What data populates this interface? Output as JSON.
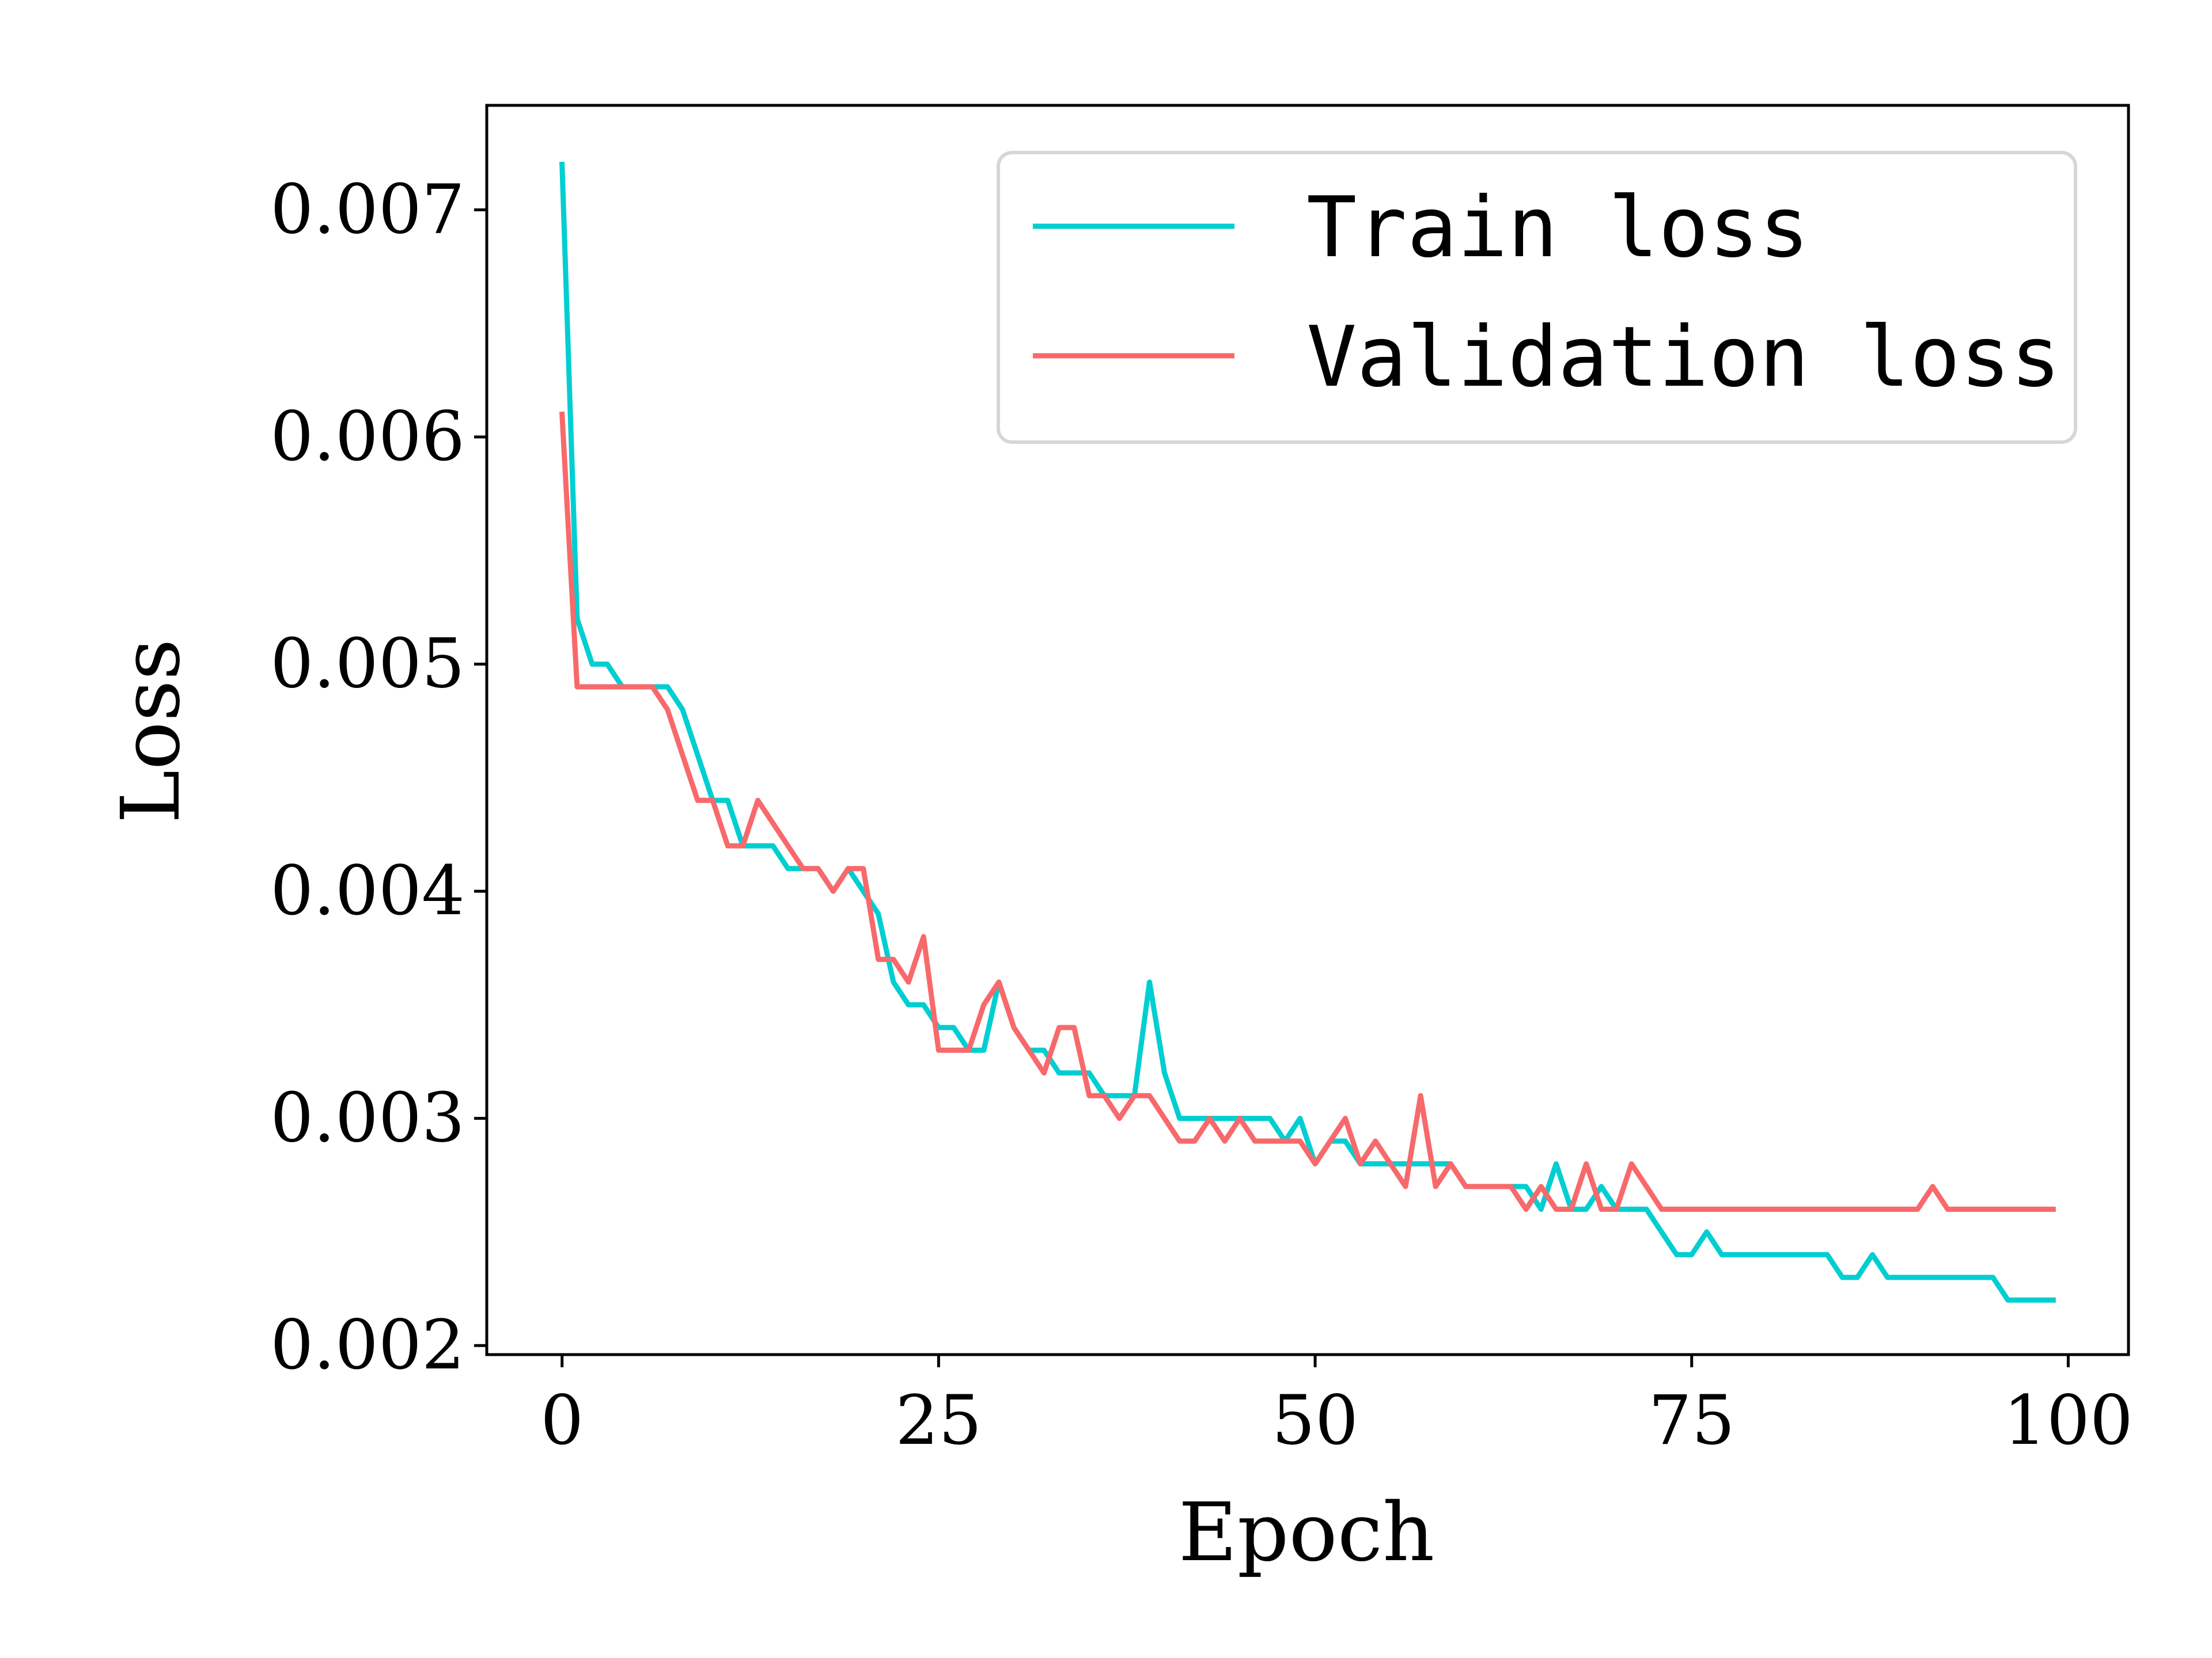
{
  "chart_data": {
    "type": "line",
    "xlabel": "Epoch",
    "ylabel": "Loss",
    "xlim": [
      -5,
      104
    ],
    "ylim": [
      0.00196,
      0.00746
    ],
    "xticks": [
      0,
      25,
      50,
      75,
      100
    ],
    "xtick_labels": [
      "0",
      "25",
      "50",
      "75",
      "100"
    ],
    "yticks": [
      0.002,
      0.003,
      0.004,
      0.005,
      0.006,
      0.007
    ],
    "ytick_labels": [
      "0.002",
      "0.003",
      "0.004",
      "0.005",
      "0.006",
      "0.007"
    ],
    "grid": false,
    "legend_position": "top-right",
    "series": [
      {
        "name": "Train loss",
        "color": "#00CED1",
        "x": [
          0,
          1,
          2,
          3,
          4,
          5,
          6,
          7,
          8,
          9,
          10,
          11,
          12,
          13,
          14,
          15,
          16,
          17,
          18,
          19,
          20,
          21,
          22,
          23,
          24,
          25,
          26,
          27,
          28,
          29,
          30,
          31,
          32,
          33,
          34,
          35,
          36,
          37,
          38,
          39,
          40,
          41,
          42,
          43,
          44,
          45,
          46,
          47,
          48,
          49,
          50,
          51,
          52,
          53,
          54,
          55,
          56,
          57,
          58,
          59,
          60,
          61,
          62,
          63,
          64,
          65,
          66,
          67,
          68,
          69,
          70,
          71,
          72,
          73,
          74,
          75,
          76,
          77,
          78,
          79,
          80,
          81,
          82,
          83,
          84,
          85,
          86,
          87,
          88,
          89,
          90,
          91,
          92,
          93,
          94,
          95,
          96,
          97,
          98,
          99
        ],
        "values": [
          0.0072,
          0.0052,
          0.005,
          0.005,
          0.0049,
          0.0049,
          0.0049,
          0.0049,
          0.0048,
          0.0046,
          0.0044,
          0.0044,
          0.0042,
          0.0042,
          0.0042,
          0.0041,
          0.0041,
          0.0041,
          0.004,
          0.0041,
          0.004,
          0.0039,
          0.0036,
          0.0035,
          0.0035,
          0.0034,
          0.0034,
          0.0033,
          0.0033,
          0.0036,
          0.0034,
          0.0033,
          0.0033,
          0.0032,
          0.0032,
          0.0032,
          0.0031,
          0.0031,
          0.0031,
          0.0036,
          0.0032,
          0.003,
          0.003,
          0.003,
          0.003,
          0.003,
          0.003,
          0.003,
          0.0029,
          0.003,
          0.0028,
          0.0029,
          0.0029,
          0.0028,
          0.0028,
          0.0028,
          0.0028,
          0.0028,
          0.0028,
          0.0028,
          0.0027,
          0.0027,
          0.0027,
          0.0027,
          0.0027,
          0.0026,
          0.0028,
          0.0026,
          0.0026,
          0.0027,
          0.0026,
          0.0026,
          0.0026,
          0.0025,
          0.0024,
          0.0024,
          0.0025,
          0.0024,
          0.0024,
          0.0024,
          0.0024,
          0.0024,
          0.0024,
          0.0024,
          0.0024,
          0.0023,
          0.0023,
          0.0024,
          0.0023,
          0.0023,
          0.0023,
          0.0023,
          0.0023,
          0.0023,
          0.0023,
          0.0023,
          0.0022,
          0.0022,
          0.0022,
          0.0022
        ]
      },
      {
        "name": "Validation loss",
        "color": "#F8696B",
        "x": [
          0,
          1,
          2,
          3,
          4,
          5,
          6,
          7,
          8,
          9,
          10,
          11,
          12,
          13,
          14,
          15,
          16,
          17,
          18,
          19,
          20,
          21,
          22,
          23,
          24,
          25,
          26,
          27,
          28,
          29,
          30,
          31,
          32,
          33,
          34,
          35,
          36,
          37,
          38,
          39,
          40,
          41,
          42,
          43,
          44,
          45,
          46,
          47,
          48,
          49,
          50,
          51,
          52,
          53,
          54,
          55,
          56,
          57,
          58,
          59,
          60,
          61,
          62,
          63,
          64,
          65,
          66,
          67,
          68,
          69,
          70,
          71,
          72,
          73,
          74,
          75,
          76,
          77,
          78,
          79,
          80,
          81,
          82,
          83,
          84,
          85,
          86,
          87,
          88,
          89,
          90,
          91,
          92,
          93,
          94,
          95,
          96,
          97,
          98,
          99
        ],
        "values": [
          0.0061,
          0.0049,
          0.0049,
          0.0049,
          0.0049,
          0.0049,
          0.0049,
          0.0048,
          0.0046,
          0.0044,
          0.0044,
          0.0042,
          0.0042,
          0.0044,
          0.0043,
          0.0042,
          0.0041,
          0.0041,
          0.004,
          0.0041,
          0.0041,
          0.0037,
          0.0037,
          0.0036,
          0.0038,
          0.0033,
          0.0033,
          0.0033,
          0.0035,
          0.0036,
          0.0034,
          0.0033,
          0.0032,
          0.0034,
          0.0034,
          0.0031,
          0.0031,
          0.003,
          0.0031,
          0.0031,
          0.003,
          0.0029,
          0.0029,
          0.003,
          0.0029,
          0.003,
          0.0029,
          0.0029,
          0.0029,
          0.0029,
          0.0028,
          0.0029,
          0.003,
          0.0028,
          0.0029,
          0.0028,
          0.0027,
          0.0031,
          0.0027,
          0.0028,
          0.0027,
          0.0027,
          0.0027,
          0.0027,
          0.0026,
          0.0027,
          0.0026,
          0.0026,
          0.0028,
          0.0026,
          0.0026,
          0.0028,
          0.0027,
          0.0026,
          0.0026,
          0.0026,
          0.0026,
          0.0026,
          0.0026,
          0.0026,
          0.0026,
          0.0026,
          0.0026,
          0.0026,
          0.0026,
          0.0026,
          0.0026,
          0.0026,
          0.0026,
          0.0026,
          0.0026,
          0.0027,
          0.0026,
          0.0026,
          0.0026,
          0.0026,
          0.0026,
          0.0026,
          0.0026,
          0.0026
        ]
      }
    ]
  }
}
